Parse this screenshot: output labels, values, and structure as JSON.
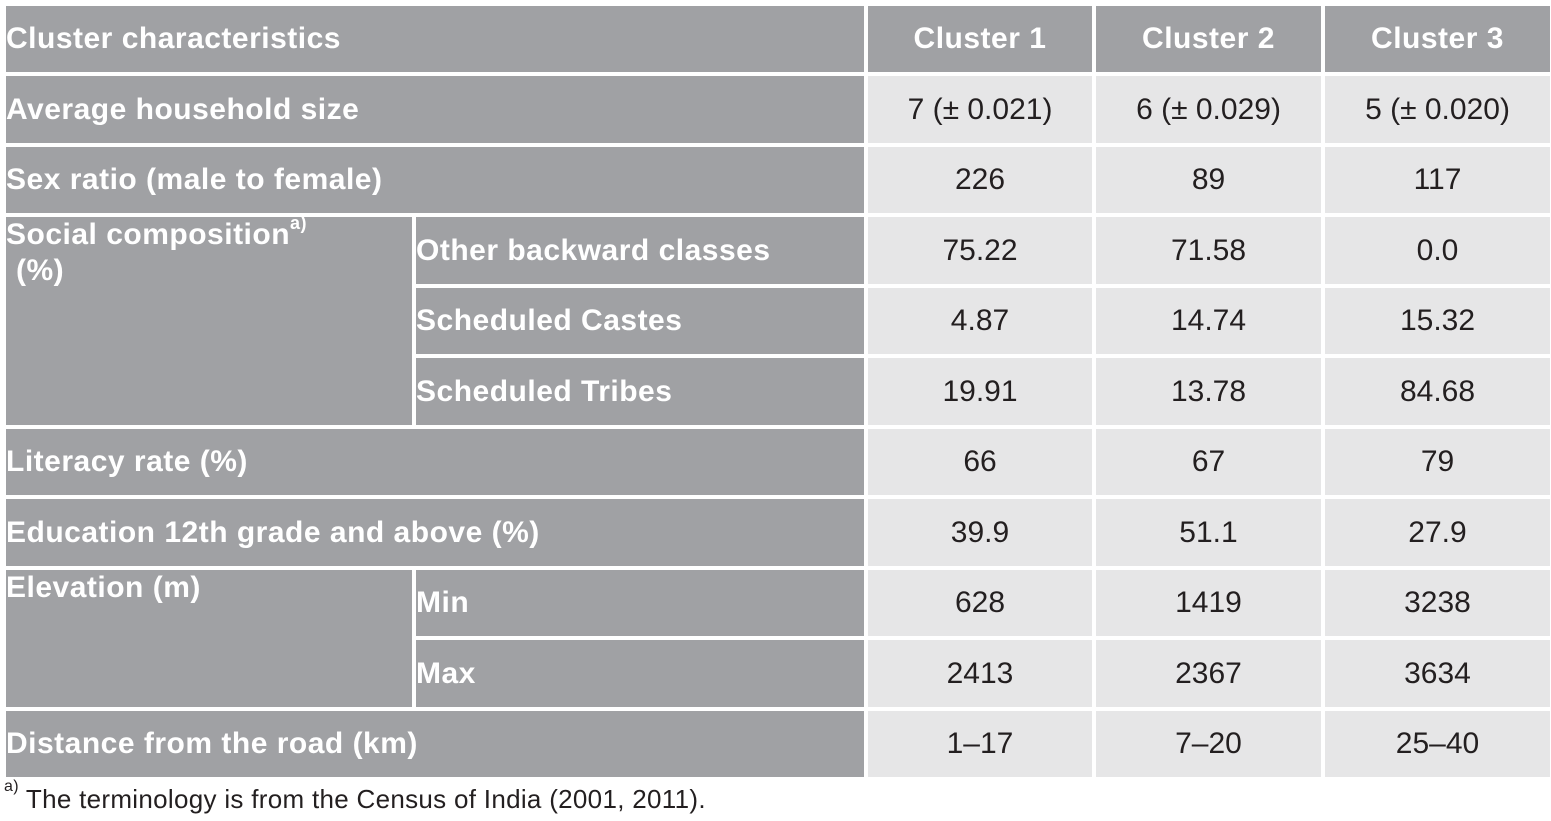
{
  "header": {
    "characteristics": "Cluster characteristics",
    "columns": [
      "Cluster 1",
      "Cluster 2",
      "Cluster 3"
    ]
  },
  "rows": {
    "household": {
      "label": "Average household size",
      "values": [
        "7 (± 0.021)",
        "6 (± 0.029)",
        "5 (± 0.020)"
      ]
    },
    "sex_ratio": {
      "label": "Sex ratio (male to female)",
      "values": [
        "226",
        "89",
        "117"
      ]
    },
    "social": {
      "label": "Social composition",
      "footnote_marker": "a)",
      "unit": "(%)",
      "subrows": [
        {
          "label": "Other backward classes",
          "values": [
            "75.22",
            "71.58",
            "0.0"
          ]
        },
        {
          "label": "Scheduled Castes",
          "values": [
            "4.87",
            "14.74",
            "15.32"
          ]
        },
        {
          "label": "Scheduled Tribes",
          "values": [
            "19.91",
            "13.78",
            "84.68"
          ]
        }
      ]
    },
    "literacy": {
      "label": "Literacy rate (%)",
      "values": [
        "66",
        "67",
        "79"
      ]
    },
    "education": {
      "label": "Education 12th grade and above (%)",
      "values": [
        "39.9",
        "51.1",
        "27.9"
      ]
    },
    "elevation": {
      "label": "Elevation (m)",
      "subrows": [
        {
          "label": "Min",
          "values": [
            "628",
            "1419",
            "3238"
          ]
        },
        {
          "label": "Max",
          "values": [
            "2413",
            "2367",
            "3634"
          ]
        }
      ]
    },
    "distance": {
      "label": "Distance from the road (km)",
      "values": [
        "1–17",
        "7–20",
        "25–40"
      ]
    }
  },
  "footnote": {
    "marker": "a)",
    "text": " The terminology is from the Census of India (2001, 2011)."
  }
}
